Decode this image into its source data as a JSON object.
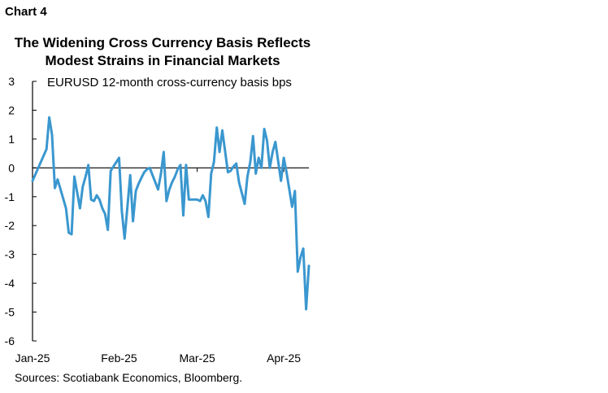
{
  "header": {
    "chart_label": "Chart 4",
    "title_line1": "The Widening Cross Currency Basis Reflects",
    "title_line2": "Modest Strains in Financial Markets"
  },
  "footer": {
    "source": "Sources: Scotiabank Economics, Bloomberg."
  },
  "chart_data": {
    "type": "line",
    "title": "The Widening Cross Currency Basis Reflects Modest Strains in Financial Markets",
    "xlabel": "",
    "ylabel": "",
    "ylim": [
      -6,
      3
    ],
    "yticks": [
      "3",
      "2",
      "1",
      "0",
      "-1",
      "-2",
      "-3",
      "-4",
      "-5",
      "-6"
    ],
    "xlim": [
      0,
      99
    ],
    "xticks": [
      {
        "label": "Jan-25",
        "x": 0
      },
      {
        "label": "Feb-25",
        "x": 31
      },
      {
        "label": "Mar-25",
        "x": 59
      },
      {
        "label": "Apr-25",
        "x": 90
      }
    ],
    "grid": false,
    "zero_line": true,
    "color": "#3a97cf",
    "series": [
      {
        "name": "EURUSD 12-month cross-currency basis bps",
        "x": [
          0,
          5,
          6,
          7,
          8,
          9,
          12,
          13,
          14,
          15,
          17,
          18,
          19,
          20,
          21,
          22,
          23,
          24,
          25,
          26,
          27,
          28,
          31,
          32,
          33,
          35,
          36,
          37,
          38,
          39,
          40,
          41,
          42,
          45,
          46,
          47,
          48,
          49,
          50,
          51,
          52,
          53,
          54,
          55,
          56,
          59,
          60,
          61,
          62,
          63,
          64,
          65,
          66,
          67,
          68,
          70,
          71,
          72,
          73,
          74,
          76,
          77,
          78,
          79,
          80,
          81,
          82,
          83,
          84,
          85,
          86,
          87,
          89,
          90,
          91,
          93,
          94,
          95,
          96,
          97,
          98,
          99
        ],
        "y": [
          -0.45,
          0.65,
          1.75,
          1.15,
          -0.7,
          -0.4,
          -1.4,
          -2.25,
          -2.3,
          -0.3,
          -1.4,
          -0.65,
          -0.3,
          0.1,
          -1.1,
          -1.15,
          -0.95,
          -1.1,
          -1.4,
          -1.6,
          -2.15,
          -0.1,
          0.35,
          -1.5,
          -2.45,
          -0.25,
          -1.85,
          -0.8,
          -0.55,
          -0.35,
          -0.15,
          -0.05,
          0.0,
          -0.75,
          -0.2,
          0.55,
          -1.15,
          -0.75,
          -0.5,
          -0.3,
          -0.05,
          0.1,
          -1.65,
          0.1,
          -1.1,
          -1.1,
          -1.15,
          -0.95,
          -1.15,
          -1.7,
          -0.2,
          0.2,
          1.4,
          0.55,
          1.3,
          -0.15,
          -0.1,
          0.05,
          0.15,
          -0.5,
          -1.25,
          -0.3,
          0.2,
          1.1,
          -0.2,
          0.35,
          0.0,
          1.35,
          0.95,
          0.0,
          0.55,
          0.9,
          -0.45,
          0.35,
          -0.15,
          -1.35,
          -0.8,
          -3.6,
          -3.1,
          -2.8,
          -4.9,
          -3.4
        ]
      }
    ]
  }
}
